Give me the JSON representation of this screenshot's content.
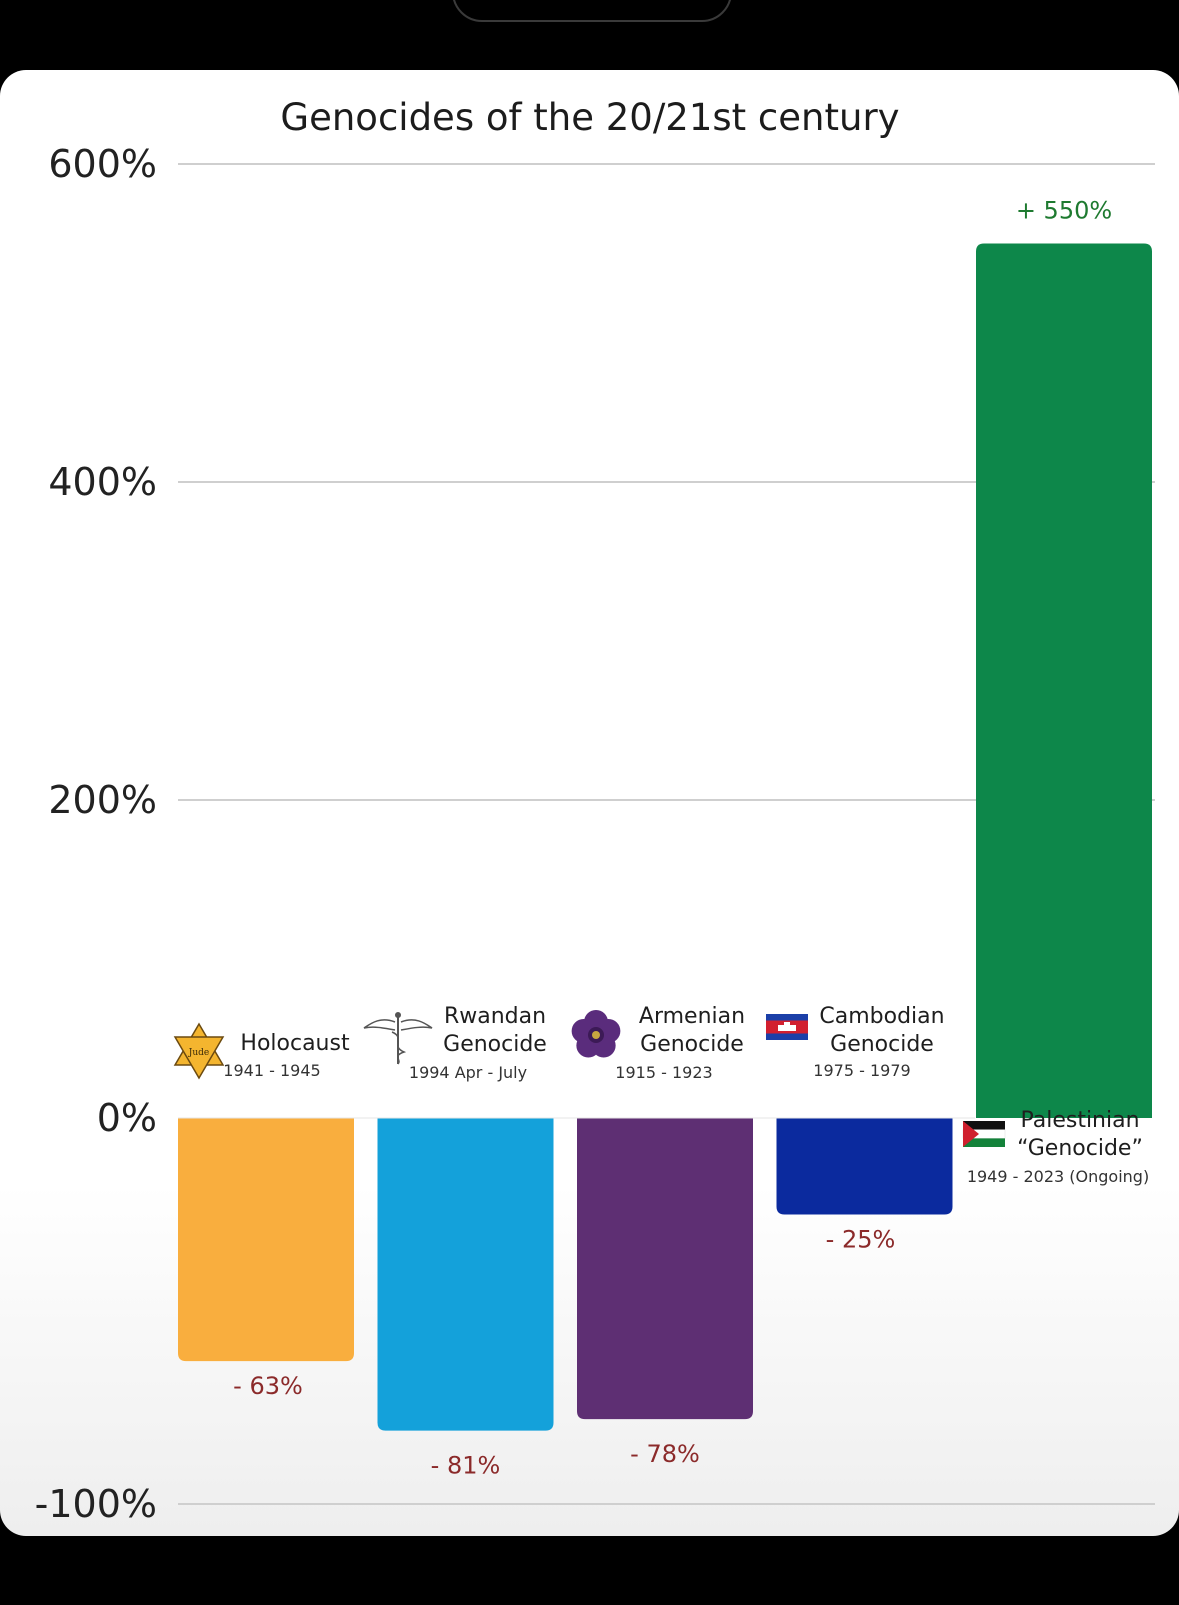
{
  "chart_data": {
    "type": "bar",
    "title": "Genocides of the 20/21st century",
    "xlabel": "",
    "ylabel": "",
    "ylim": [
      -100,
      600
    ],
    "yticks": [
      600,
      400,
      200,
      0,
      -100
    ],
    "ytick_labels": [
      "600%",
      "400%",
      "200%",
      "0%",
      "-100%"
    ],
    "grid": true,
    "categories": [
      {
        "name_lines": [
          "Holocaust"
        ],
        "years": "1941 - 1945",
        "icon": "star-of-david-icon"
      },
      {
        "name_lines": [
          "Rwandan",
          "Genocide"
        ],
        "years": "1994 Apr - July",
        "icon": "caduceus-icon"
      },
      {
        "name_lines": [
          "Armenian",
          "Genocide"
        ],
        "years": "1915 - 1923",
        "icon": "forget-me-not-icon"
      },
      {
        "name_lines": [
          "Cambodian",
          "Genocide"
        ],
        "years": "1975 - 1979",
        "icon": "cambodia-flag-icon"
      },
      {
        "name_lines": [
          "Palestinian",
          "“Genocide”"
        ],
        "years": "1949 - 2023 (Ongoing)",
        "icon": "palestine-flag-icon"
      }
    ],
    "values": [
      -63,
      -81,
      -78,
      -25,
      550
    ],
    "value_labels": [
      "- 63%",
      "- 81%",
      "- 78%",
      "- 25%",
      "+ 550%"
    ],
    "colors": [
      "#F9AE3E",
      "#14A1DA",
      "#5E2F73",
      "#0B2A9E",
      "#0D874A"
    ]
  }
}
